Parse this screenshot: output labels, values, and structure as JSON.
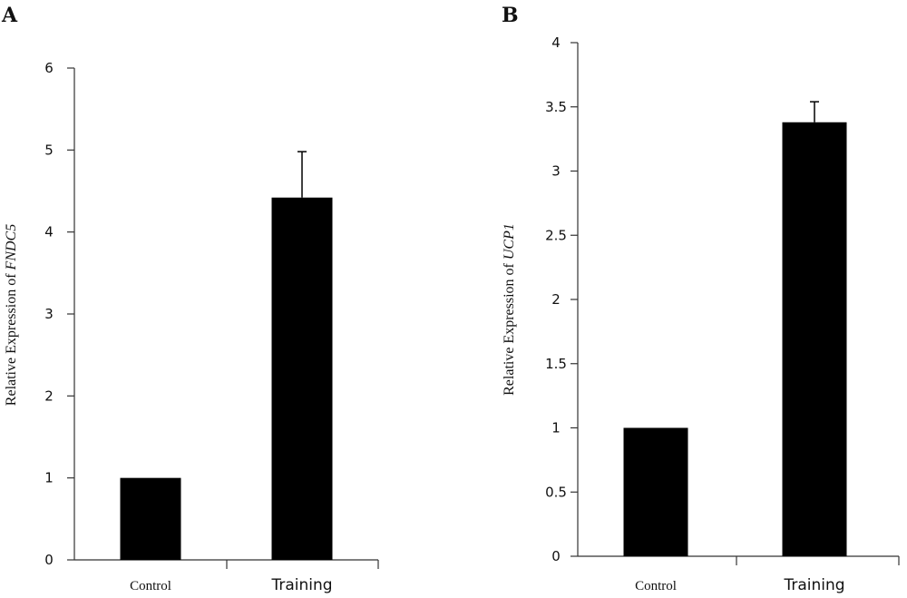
{
  "chart_data": [
    {
      "type": "bar",
      "panel_label": "A",
      "categories": [
        "Control",
        "Training"
      ],
      "values": [
        1,
        4.42
      ],
      "errors_upper": [
        0,
        0.56
      ],
      "ylabel_prefix": "Relative Expression of ",
      "ylabel_gene": "FNDC5",
      "ylim": [
        0,
        6
      ],
      "yticks": [
        "0",
        "1",
        "2",
        "3",
        "4",
        "5",
        "6"
      ],
      "ytick_values": [
        0,
        1,
        2,
        3,
        4,
        5,
        6
      ]
    },
    {
      "type": "bar",
      "panel_label": "B",
      "categories": [
        "Control",
        "Training"
      ],
      "values": [
        1,
        3.38
      ],
      "errors_upper": [
        0,
        0.16
      ],
      "ylabel_prefix": "Relative Expression of ",
      "ylabel_gene": "UCP1",
      "ylim": [
        0,
        4
      ],
      "yticks": [
        "0",
        "0.5",
        "1",
        "1.5",
        "2",
        "2.5",
        "3",
        "3.5",
        "4"
      ],
      "ytick_values": [
        0,
        0.5,
        1,
        1.5,
        2,
        2.5,
        3,
        3.5,
        4
      ]
    }
  ]
}
